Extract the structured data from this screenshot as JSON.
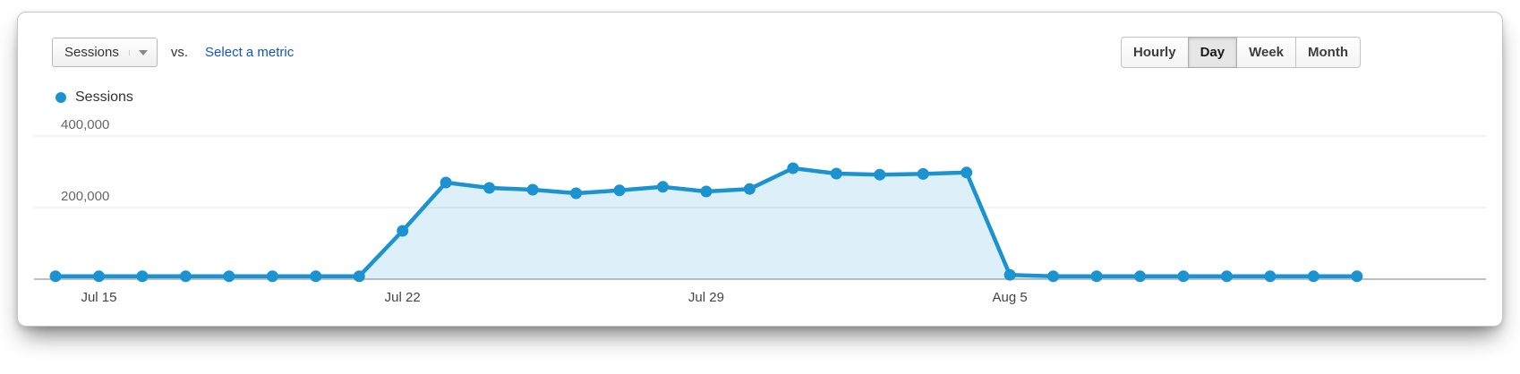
{
  "header": {
    "metric_selector": {
      "label": "Sessions"
    },
    "vs_label": "vs.",
    "select_metric_link": "Select a metric",
    "granularity": {
      "options": [
        "Hourly",
        "Day",
        "Week",
        "Month"
      ],
      "selected": "Day"
    }
  },
  "legend": {
    "label": "Sessions",
    "color": "#1b93d1"
  },
  "chart_data": {
    "type": "line",
    "series": [
      {
        "name": "Sessions",
        "values": [
          8000,
          8000,
          8000,
          8000,
          8000,
          8000,
          8000,
          8000,
          135000,
          270000,
          255000,
          250000,
          240000,
          248000,
          258000,
          245000,
          252000,
          310000,
          295000,
          292000,
          294000,
          298000,
          12000,
          8000,
          8000,
          8000,
          8000,
          8000,
          8000,
          8000,
          8000
        ]
      }
    ],
    "x": [
      "Jul 14",
      "Jul 15",
      "Jul 16",
      "Jul 17",
      "Jul 18",
      "Jul 19",
      "Jul 20",
      "Jul 21",
      "Jul 22",
      "Jul 23",
      "Jul 24",
      "Jul 25",
      "Jul 26",
      "Jul 27",
      "Jul 28",
      "Jul 29",
      "Jul 30",
      "Jul 31",
      "Aug 1",
      "Aug 2",
      "Aug 3",
      "Aug 4",
      "Aug 5",
      "Aug 6",
      "Aug 7",
      "Aug 8",
      "Aug 9",
      "Aug 10",
      "Aug 11",
      "Aug 12",
      "Aug 13"
    ],
    "x_tick_labels": [
      "Jul 15",
      "Jul 22",
      "Jul 29",
      "Aug 5"
    ],
    "x_tick_indices": [
      1,
      8,
      15,
      22
    ],
    "y_ticks": [
      200000,
      400000
    ],
    "y_tick_labels": [
      "200,000",
      "400,000"
    ],
    "ylim": [
      0,
      450000
    ],
    "grid": "horizontal-only",
    "legend_position": "top-left",
    "line_color": "#1b93d1",
    "area_fill": "rgba(27,147,209,0.15)"
  }
}
